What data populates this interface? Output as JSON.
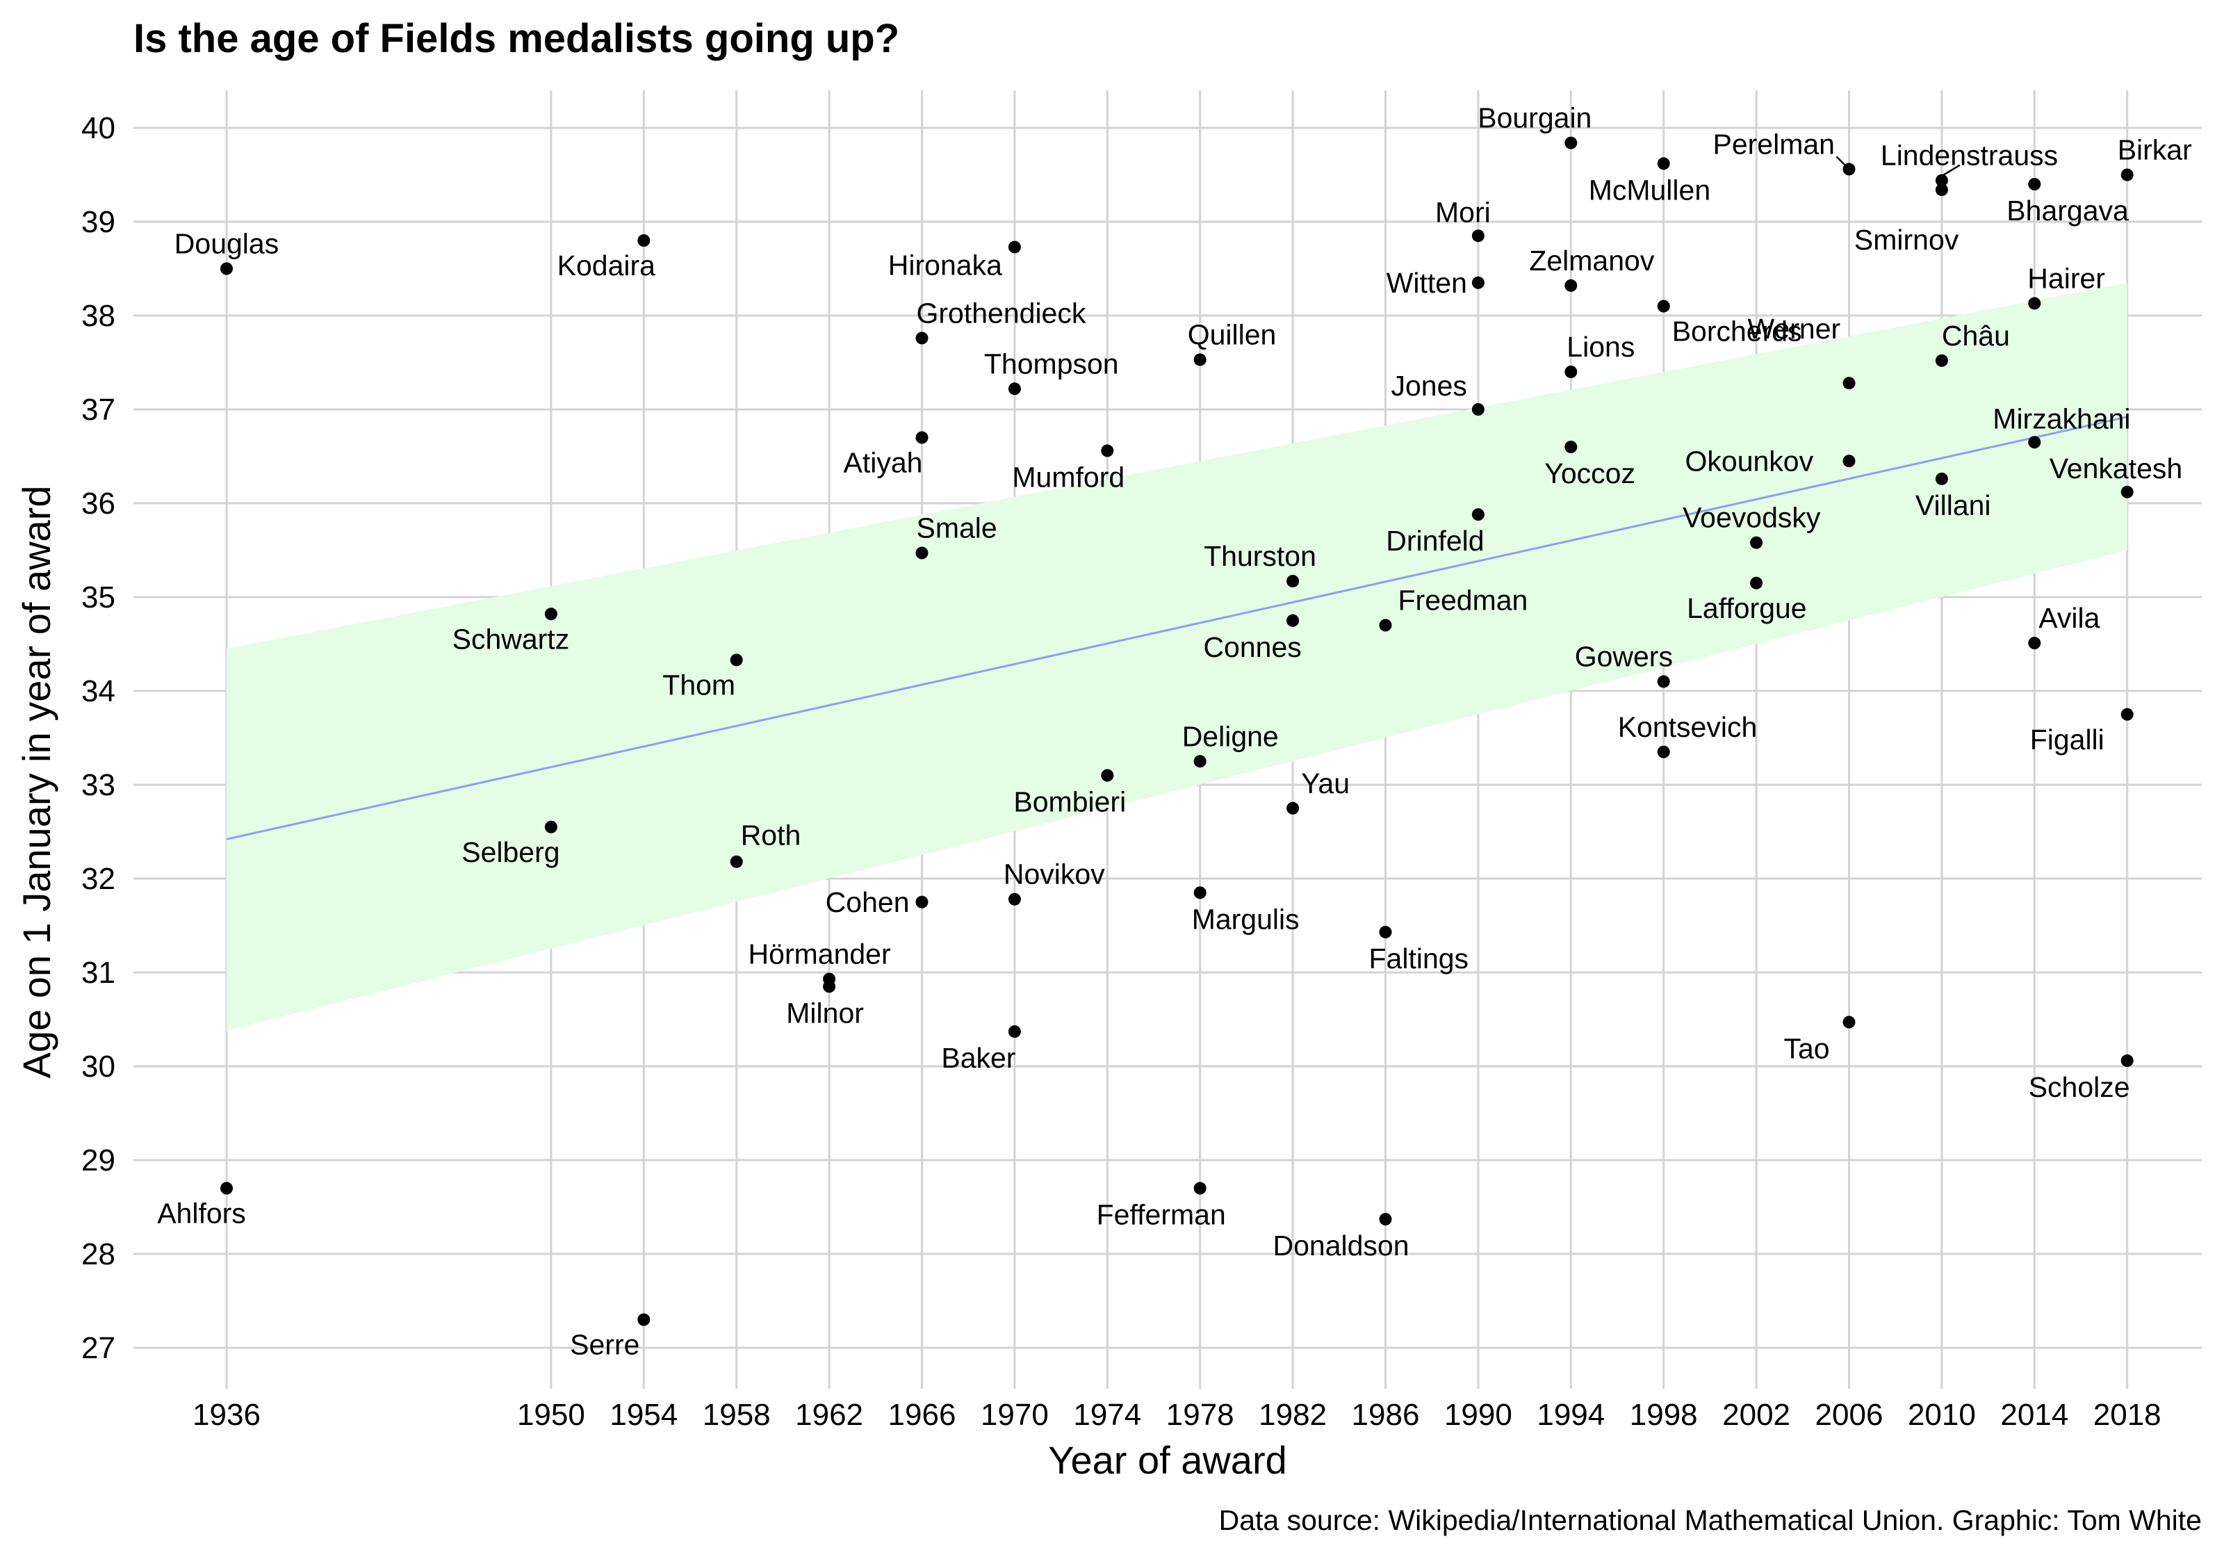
{
  "title": "Is the age of Fields medalists going up?",
  "caption": "Data source: Wikipedia/International Mathematical Union. Graphic: Tom White",
  "chart_data": {
    "type": "scatter",
    "title": "Is the age of Fields medalists going up?",
    "xlabel": "Year of award",
    "ylabel": "Age on 1 January in year of award",
    "xlim": [
      1932,
      2021
    ],
    "ylim": [
      26.6,
      40.6
    ],
    "xticks": [
      1936,
      1950,
      1954,
      1958,
      1962,
      1966,
      1970,
      1974,
      1978,
      1982,
      1986,
      1990,
      1994,
      1998,
      2002,
      2006,
      2010,
      2014,
      2018
    ],
    "yticks": [
      27,
      28,
      29,
      30,
      31,
      32,
      33,
      34,
      35,
      36,
      37,
      38,
      39,
      40
    ],
    "grid": true,
    "colors": {
      "points": "#000000",
      "trend_line": "#8f9ff0",
      "confidence_band": "#e5fce5",
      "grid": "#d3d3d3"
    },
    "trend": {
      "x": [
        1936,
        2018
      ],
      "y": [
        32.42,
        36.92
      ],
      "band_lower": [
        30.38,
        35.5
      ],
      "band_upper": [
        34.45,
        38.35
      ]
    },
    "points": [
      {
        "name": "Douglas",
        "x": 1936,
        "y": 38.5
      },
      {
        "name": "Ahlfors",
        "x": 1936,
        "y": 28.7
      },
      {
        "name": "Schwartz",
        "x": 1950,
        "y": 34.82
      },
      {
        "name": "Selberg",
        "x": 1950,
        "y": 32.55
      },
      {
        "name": "Kodaira",
        "x": 1954,
        "y": 38.8
      },
      {
        "name": "Serre",
        "x": 1954,
        "y": 27.3
      },
      {
        "name": "Thom",
        "x": 1958,
        "y": 34.33
      },
      {
        "name": "Roth",
        "x": 1958,
        "y": 32.18
      },
      {
        "name": "Hörmander",
        "x": 1962,
        "y": 30.93
      },
      {
        "name": "Milnor",
        "x": 1962,
        "y": 30.85
      },
      {
        "name": "Grothendieck",
        "x": 1966,
        "y": 37.76
      },
      {
        "name": "Atiyah",
        "x": 1966,
        "y": 36.7
      },
      {
        "name": "Smale",
        "x": 1966,
        "y": 35.47
      },
      {
        "name": "Cohen",
        "x": 1966,
        "y": 31.75
      },
      {
        "name": "Hironaka",
        "x": 1970,
        "y": 38.73
      },
      {
        "name": "Thompson",
        "x": 1970,
        "y": 37.22
      },
      {
        "name": "Novikov",
        "x": 1970,
        "y": 31.78
      },
      {
        "name": "Baker",
        "x": 1970,
        "y": 30.37
      },
      {
        "name": "Mumford",
        "x": 1974,
        "y": 36.56
      },
      {
        "name": "Bombieri",
        "x": 1974,
        "y": 33.1
      },
      {
        "name": "Quillen",
        "x": 1978,
        "y": 37.53
      },
      {
        "name": "Deligne",
        "x": 1978,
        "y": 33.25
      },
      {
        "name": "Margulis",
        "x": 1978,
        "y": 31.85
      },
      {
        "name": "Fefferman",
        "x": 1978,
        "y": 28.7
      },
      {
        "name": "Thurston",
        "x": 1982,
        "y": 35.17
      },
      {
        "name": "Connes",
        "x": 1982,
        "y": 34.75
      },
      {
        "name": "Yau",
        "x": 1982,
        "y": 32.75
      },
      {
        "name": "Freedman",
        "x": 1986,
        "y": 34.7
      },
      {
        "name": "Faltings",
        "x": 1986,
        "y": 31.43
      },
      {
        "name": "Donaldson",
        "x": 1986,
        "y": 28.37
      },
      {
        "name": "Mori",
        "x": 1990,
        "y": 38.85
      },
      {
        "name": "Witten",
        "x": 1990,
        "y": 38.35
      },
      {
        "name": "Jones",
        "x": 1990,
        "y": 37.0
      },
      {
        "name": "Drinfeld",
        "x": 1990,
        "y": 35.88
      },
      {
        "name": "Bourgain",
        "x": 1994,
        "y": 39.84
      },
      {
        "name": "Zelmanov",
        "x": 1994,
        "y": 38.32
      },
      {
        "name": "Lions",
        "x": 1994,
        "y": 37.4
      },
      {
        "name": "Yoccoz",
        "x": 1994,
        "y": 36.6
      },
      {
        "name": "McMullen",
        "x": 1998,
        "y": 39.62
      },
      {
        "name": "Borcherds",
        "x": 1998,
        "y": 38.1
      },
      {
        "name": "Gowers",
        "x": 1998,
        "y": 34.1
      },
      {
        "name": "Kontsevich",
        "x": 1998,
        "y": 33.35
      },
      {
        "name": "Voevodsky",
        "x": 2002,
        "y": 35.58
      },
      {
        "name": "Lafforgue",
        "x": 2002,
        "y": 35.15
      },
      {
        "name": "Perelman",
        "x": 2006,
        "y": 39.56
      },
      {
        "name": "Werner",
        "x": 2006,
        "y": 37.28
      },
      {
        "name": "Okounkov",
        "x": 2006,
        "y": 36.45
      },
      {
        "name": "Tao",
        "x": 2006,
        "y": 30.47
      },
      {
        "name": "Lindenstrauss",
        "x": 2010,
        "y": 39.44
      },
      {
        "name": "Smirnov",
        "x": 2010,
        "y": 39.34
      },
      {
        "name": "Châu",
        "x": 2010,
        "y": 37.52
      },
      {
        "name": "Villani",
        "x": 2010,
        "y": 36.26
      },
      {
        "name": "Bhargava",
        "x": 2014,
        "y": 39.4
      },
      {
        "name": "Hairer",
        "x": 2014,
        "y": 38.13
      },
      {
        "name": "Mirzakhani",
        "x": 2014,
        "y": 36.65
      },
      {
        "name": "Avila",
        "x": 2014,
        "y": 34.51
      },
      {
        "name": "Birkar",
        "x": 2018,
        "y": 39.5
      },
      {
        "name": "Venkatesh",
        "x": 2018,
        "y": 36.12
      },
      {
        "name": "Figalli",
        "x": 2018,
        "y": 33.75
      },
      {
        "name": "Scholze",
        "x": 2018,
        "y": 30.06
      }
    ]
  }
}
